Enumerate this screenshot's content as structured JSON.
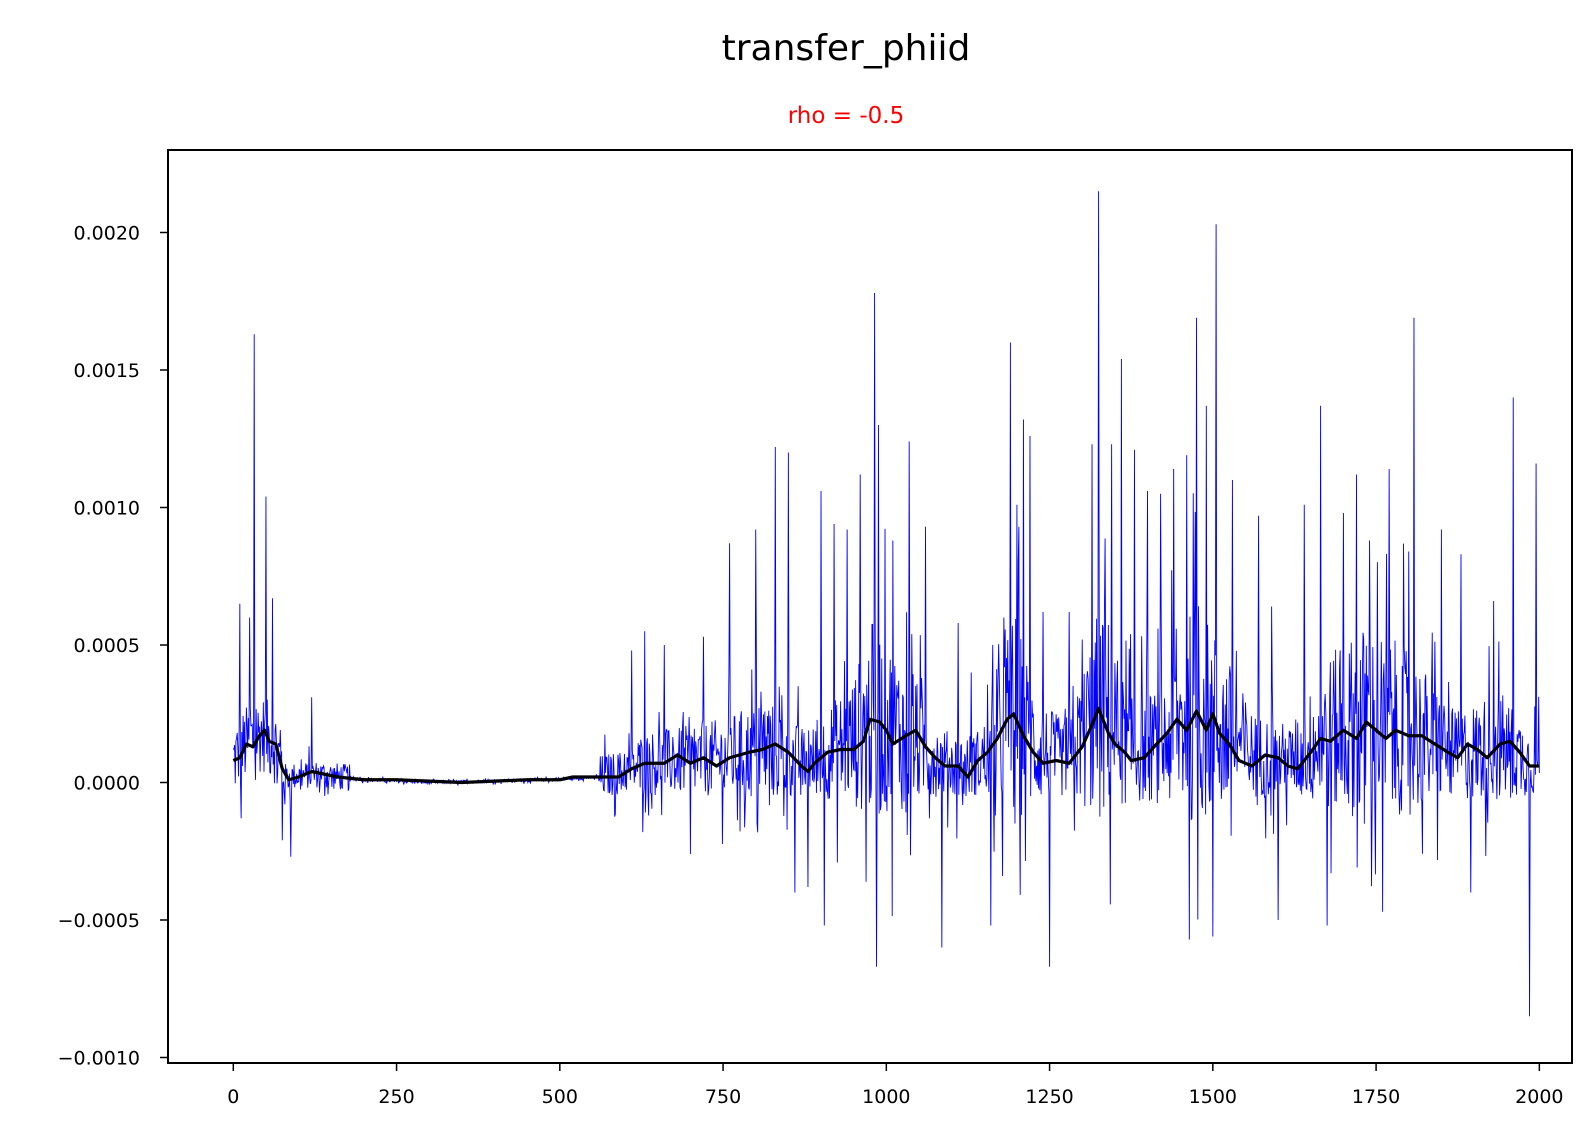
{
  "chart_data": {
    "type": "line",
    "title": "transfer_phiid",
    "subtitle": "rho = -0.5",
    "xlabel": "",
    "ylabel": "",
    "xlim": [
      -100,
      2050
    ],
    "ylim": [
      -0.00102,
      0.0023
    ],
    "xticks": [
      0,
      250,
      500,
      750,
      1000,
      1250,
      1500,
      1750,
      2000
    ],
    "xtick_labels": [
      "0",
      "250",
      "500",
      "750",
      "1000",
      "1250",
      "1500",
      "1750",
      "2000"
    ],
    "yticks": [
      -0.001,
      -0.0005,
      0.0,
      0.0005,
      0.001,
      0.0015,
      0.002
    ],
    "ytick_labels": [
      "−0.0010",
      "−0.0005",
      "0.0000",
      "0.0005",
      "0.0010",
      "0.0015",
      "0.0020"
    ],
    "grid": false,
    "legend": "none",
    "colors": {
      "raw": "#0000ff",
      "smoothed": "#000000",
      "subtitle": "#ff0000"
    },
    "series": [
      {
        "style": "thin-blue-raw",
        "x_range": [
          0,
          2000
        ],
        "baseline_trend": [
          [
            0,
            8e-05
          ],
          [
            20,
            0.00014
          ],
          [
            45,
            0.00018
          ],
          [
            65,
            0.00013
          ],
          [
            80,
            2e-05
          ],
          [
            130,
            3e-05
          ],
          [
            200,
            1e-05
          ],
          [
            300,
            0.0
          ],
          [
            480,
            1e-05
          ],
          [
            560,
            2e-05
          ],
          [
            600,
            4e-05
          ],
          [
            640,
            7e-05
          ],
          [
            700,
            8e-05
          ],
          [
            750,
            9e-05
          ],
          [
            820,
            0.00012
          ],
          [
            880,
            7e-05
          ],
          [
            950,
            0.00015
          ],
          [
            980,
            0.00023
          ],
          [
            1020,
            0.00018
          ],
          [
            1080,
            8e-05
          ],
          [
            1120,
            5e-05
          ],
          [
            1160,
            0.0001
          ],
          [
            1195,
            0.00025
          ],
          [
            1230,
            0.00012
          ],
          [
            1280,
            8e-05
          ],
          [
            1330,
            0.00027
          ],
          [
            1370,
            0.00012
          ],
          [
            1420,
            0.00013
          ],
          [
            1470,
            0.00025
          ],
          [
            1500,
            0.00022
          ],
          [
            1560,
            0.0001
          ],
          [
            1620,
            8e-05
          ],
          [
            1680,
            0.00018
          ],
          [
            1730,
            0.00022
          ],
          [
            1800,
            0.00019
          ],
          [
            1870,
            0.0001
          ],
          [
            1940,
            0.00013
          ],
          [
            2000,
            6e-05
          ]
        ],
        "spikes": [
          [
            10,
            0.00065
          ],
          [
            12,
            -0.00013
          ],
          [
            25,
            0.0006
          ],
          [
            32,
            0.00163
          ],
          [
            50,
            0.00104
          ],
          [
            60,
            0.00067
          ],
          [
            75,
            -0.00021
          ],
          [
            88,
            -0.00027
          ],
          [
            120,
            0.00031
          ],
          [
            610,
            0.00048
          ],
          [
            630,
            0.00055
          ],
          [
            660,
            0.0005
          ],
          [
            700,
            -0.00026
          ],
          [
            720,
            0.00053
          ],
          [
            760,
            0.00087
          ],
          [
            800,
            0.00092
          ],
          [
            830,
            0.00122
          ],
          [
            850,
            0.0012
          ],
          [
            860,
            -0.0004
          ],
          [
            880,
            -0.00038
          ],
          [
            900,
            0.00106
          ],
          [
            905,
            -0.00052
          ],
          [
            920,
            0.00094
          ],
          [
            940,
            0.00092
          ],
          [
            960,
            0.00112
          ],
          [
            982,
            0.00178
          ],
          [
            985,
            -0.00067
          ],
          [
            988,
            0.0013
          ],
          [
            1010,
            0.00088
          ],
          [
            1035,
            0.00124
          ],
          [
            1060,
            0.00093
          ],
          [
            1085,
            -0.0006
          ],
          [
            1110,
            0.00058
          ],
          [
            1130,
            0.0004
          ],
          [
            1160,
            -0.00052
          ],
          [
            1180,
            0.0006
          ],
          [
            1190,
            0.0016
          ],
          [
            1210,
            0.00132
          ],
          [
            1220,
            0.00126
          ],
          [
            1240,
            0.00062
          ],
          [
            1250,
            -0.00067
          ],
          [
            1280,
            0.00062
          ],
          [
            1300,
            0.00052
          ],
          [
            1315,
            0.00123
          ],
          [
            1325,
            0.00215
          ],
          [
            1345,
            0.00123
          ],
          [
            1360,
            0.00154
          ],
          [
            1380,
            0.00121
          ],
          [
            1400,
            0.00106
          ],
          [
            1420,
            0.00105
          ],
          [
            1440,
            0.00114
          ],
          [
            1460,
            0.00119
          ],
          [
            1475,
            0.00169
          ],
          [
            1490,
            0.00137
          ],
          [
            1500,
            -0.00056
          ],
          [
            1505,
            0.00203
          ],
          [
            1530,
            0.0011
          ],
          [
            1570,
            0.00097
          ],
          [
            1590,
            0.00064
          ],
          [
            1600,
            -0.0005
          ],
          [
            1640,
            0.00101
          ],
          [
            1665,
            0.00137
          ],
          [
            1675,
            -0.00052
          ],
          [
            1700,
            0.00098
          ],
          [
            1720,
            0.00112
          ],
          [
            1740,
            0.00088
          ],
          [
            1760,
            -0.00047
          ],
          [
            1770,
            0.00114
          ],
          [
            1800,
            0.00084
          ],
          [
            1808,
            0.00169
          ],
          [
            1850,
            0.00092
          ],
          [
            1880,
            0.00083
          ],
          [
            1895,
            -0.0004
          ],
          [
            1930,
            0.00066
          ],
          [
            1960,
            0.0014
          ],
          [
            1985,
            -0.00085
          ],
          [
            1995,
            0.00116
          ]
        ]
      },
      {
        "style": "thick-black-smoothed",
        "points": [
          [
            0,
            8e-05
          ],
          [
            10,
            9e-05
          ],
          [
            20,
            0.00014
          ],
          [
            30,
            0.00013
          ],
          [
            40,
            0.00017
          ],
          [
            48,
            0.00019
          ],
          [
            55,
            0.00015
          ],
          [
            65,
            0.00014
          ],
          [
            75,
            5e-05
          ],
          [
            85,
            1e-05
          ],
          [
            100,
            2e-05
          ],
          [
            120,
            4e-05
          ],
          [
            140,
            3e-05
          ],
          [
            160,
            2e-05
          ],
          [
            200,
            1e-05
          ],
          [
            250,
            1e-05
          ],
          [
            350,
            0.0
          ],
          [
            450,
            1e-05
          ],
          [
            500,
            1e-05
          ],
          [
            520,
            2e-05
          ],
          [
            560,
            2e-05
          ],
          [
            590,
            2e-05
          ],
          [
            610,
            5e-05
          ],
          [
            630,
            7e-05
          ],
          [
            660,
            7e-05
          ],
          [
            680,
            0.0001
          ],
          [
            700,
            7e-05
          ],
          [
            720,
            9e-05
          ],
          [
            740,
            6e-05
          ],
          [
            760,
            9e-05
          ],
          [
            790,
            0.00011
          ],
          [
            810,
            0.00012
          ],
          [
            830,
            0.00014
          ],
          [
            850,
            0.00011
          ],
          [
            870,
            6e-05
          ],
          [
            880,
            4e-05
          ],
          [
            890,
            7e-05
          ],
          [
            910,
            0.00011
          ],
          [
            930,
            0.00012
          ],
          [
            950,
            0.00012
          ],
          [
            965,
            0.00015
          ],
          [
            975,
            0.00023
          ],
          [
            990,
            0.00022
          ],
          [
            1000,
            0.00019
          ],
          [
            1010,
            0.00014
          ],
          [
            1030,
            0.00017
          ],
          [
            1045,
            0.00019
          ],
          [
            1060,
            0.00013
          ],
          [
            1075,
            9e-05
          ],
          [
            1090,
            6e-05
          ],
          [
            1110,
            6e-05
          ],
          [
            1125,
            2e-05
          ],
          [
            1140,
            8e-05
          ],
          [
            1155,
            0.00011
          ],
          [
            1170,
            0.00016
          ],
          [
            1185,
            0.00023
          ],
          [
            1195,
            0.00025
          ],
          [
            1210,
            0.00017
          ],
          [
            1225,
            0.00011
          ],
          [
            1240,
            7e-05
          ],
          [
            1260,
            8e-05
          ],
          [
            1280,
            7e-05
          ],
          [
            1300,
            0.00013
          ],
          [
            1315,
            0.00021
          ],
          [
            1325,
            0.00027
          ],
          [
            1340,
            0.00018
          ],
          [
            1350,
            0.00014
          ],
          [
            1365,
            0.00011
          ],
          [
            1375,
            8e-05
          ],
          [
            1395,
            9e-05
          ],
          [
            1410,
            0.00013
          ],
          [
            1430,
            0.00018
          ],
          [
            1445,
            0.00023
          ],
          [
            1460,
            0.00019
          ],
          [
            1475,
            0.00026
          ],
          [
            1490,
            0.00019
          ],
          [
            1500,
            0.00025
          ],
          [
            1510,
            0.00018
          ],
          [
            1525,
            0.00014
          ],
          [
            1540,
            8e-05
          ],
          [
            1560,
            6e-05
          ],
          [
            1580,
            0.0001
          ],
          [
            1600,
            9e-05
          ],
          [
            1615,
            6e-05
          ],
          [
            1630,
            5e-05
          ],
          [
            1650,
            0.00011
          ],
          [
            1665,
            0.00016
          ],
          [
            1680,
            0.00015
          ],
          [
            1700,
            0.00019
          ],
          [
            1720,
            0.00016
          ],
          [
            1735,
            0.00022
          ],
          [
            1750,
            0.00019
          ],
          [
            1765,
            0.00016
          ],
          [
            1780,
            0.00019
          ],
          [
            1800,
            0.00017
          ],
          [
            1820,
            0.00017
          ],
          [
            1840,
            0.00014
          ],
          [
            1860,
            0.00011
          ],
          [
            1875,
            9e-05
          ],
          [
            1890,
            0.00014
          ],
          [
            1905,
            0.00012
          ],
          [
            1920,
            9e-05
          ],
          [
            1940,
            0.00014
          ],
          [
            1955,
            0.00015
          ],
          [
            1970,
            0.00011
          ],
          [
            1985,
            6e-05
          ],
          [
            2000,
            6e-05
          ]
        ]
      }
    ]
  }
}
